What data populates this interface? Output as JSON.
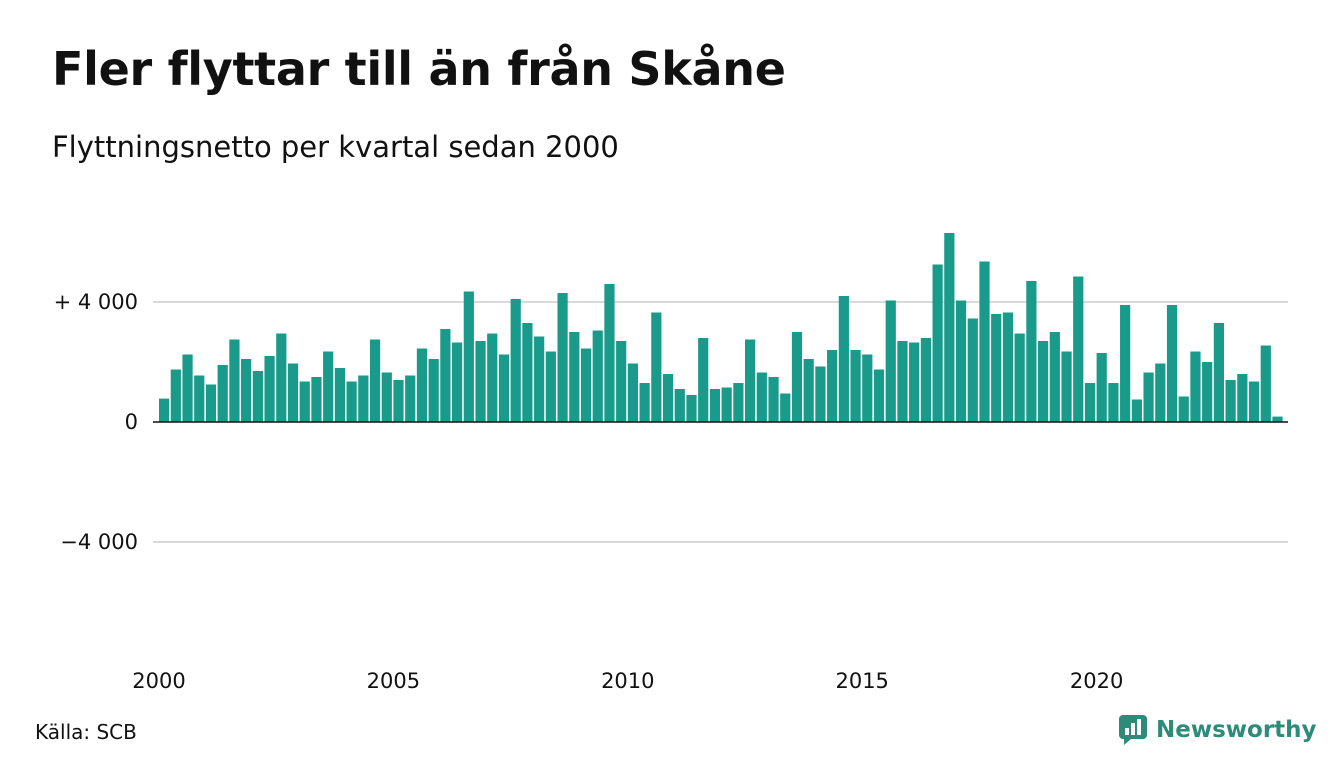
{
  "title": "Fler flyttar till än från Skåne",
  "subtitle": "Flyttningsnetto per kvartal sedan 2000",
  "source": "Källa: SCB",
  "brand": "Newsworthy",
  "colors": {
    "bar": "#1a9a8a",
    "grid": "#d9d9d9",
    "axis": "#111111",
    "brand": "#2e8b7a"
  },
  "chart_data": {
    "type": "bar",
    "title": "Fler flyttar till än från Skåne",
    "subtitle": "Flyttningsnetto per kvartal sedan 2000",
    "ylim": [
      -6800,
      6800
    ],
    "yticks": [
      {
        "value": 4000,
        "label": "+ 4 000"
      },
      {
        "value": 0,
        "label": "0"
      },
      {
        "value": -4000,
        "label": "−4 000"
      }
    ],
    "xticks": [
      {
        "quarter_index": 0,
        "label": "2000"
      },
      {
        "quarter_index": 20,
        "label": "2005"
      },
      {
        "quarter_index": 40,
        "label": "2010"
      },
      {
        "quarter_index": 60,
        "label": "2015"
      },
      {
        "quarter_index": 80,
        "label": "2020"
      }
    ],
    "grid": true,
    "series": [
      {
        "values": [
          780,
          1750,
          2250,
          1550,
          1250,
          1900,
          2750,
          2100,
          1700,
          2200,
          2950,
          1950,
          1350,
          1500,
          2350,
          1800,
          1350,
          1550,
          2750,
          1650,
          1400,
          1550,
          2450,
          2100,
          3100,
          2650,
          4350,
          2700,
          2950,
          2250,
          4100,
          3300,
          2850,
          2350,
          4300,
          3000,
          2450,
          3050,
          4600,
          2700,
          1950,
          1300,
          3650,
          1600,
          1100,
          900,
          2800,
          1100,
          1150,
          1300,
          2750,
          1650,
          1500,
          950,
          3000,
          2100,
          1850,
          2400,
          4200,
          2400,
          2250,
          1750,
          4050,
          2700,
          2650,
          2800,
          5250,
          6300,
          4050,
          3450,
          5350,
          3600,
          3650,
          2950,
          4700,
          2700,
          3000,
          2350,
          4850,
          1300,
          2300,
          1300,
          3900,
          750,
          1650,
          1950,
          3900,
          850,
          2350,
          2000,
          3300,
          1400,
          1600,
          1350,
          2550,
          180
        ]
      }
    ]
  }
}
